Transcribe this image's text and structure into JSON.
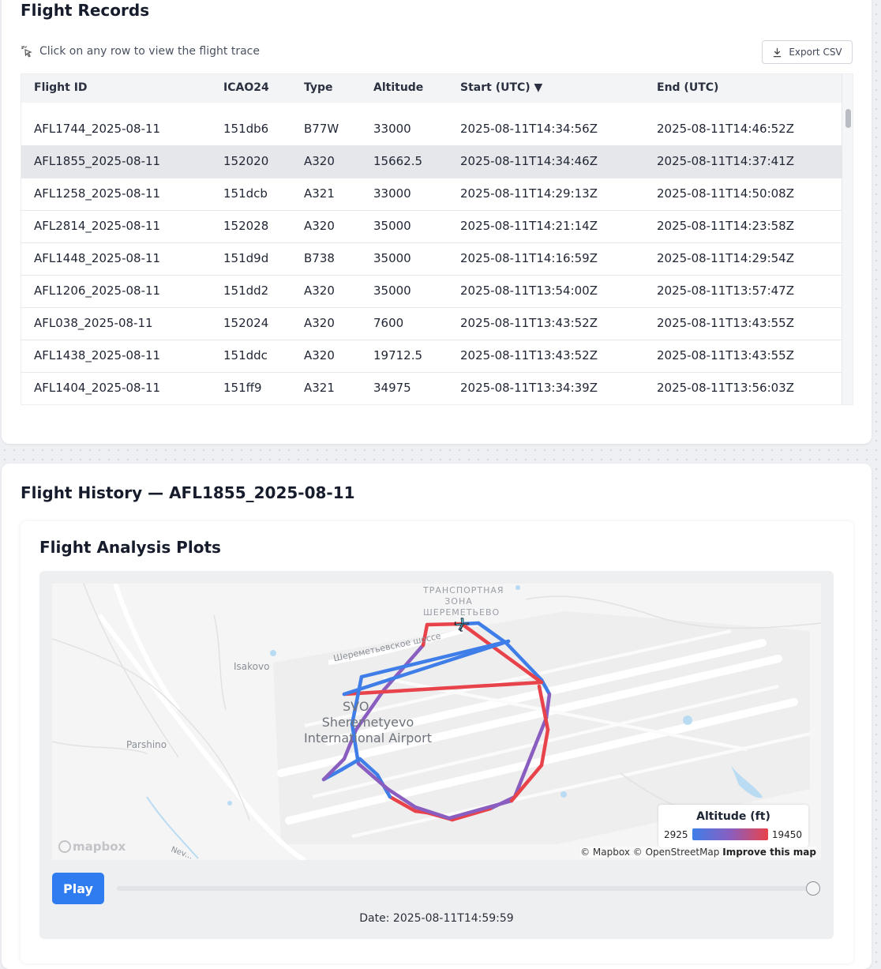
{
  "records": {
    "title": "Flight Records",
    "hint": "Click on any row to view the flight trace",
    "export_label": "Export CSV",
    "columns": [
      "Flight ID",
      "ICAO24",
      "Type",
      "Altitude",
      "Start (UTC) ▼",
      "End (UTC)"
    ],
    "rows": [
      {
        "id": "AFL1744_2025-08-11",
        "icao": "151db6",
        "type": "B77W",
        "alt": "33000",
        "start": "2025-08-11T14:34:56Z",
        "end": "2025-08-11T14:46:52Z"
      },
      {
        "id": "AFL1855_2025-08-11",
        "icao": "152020",
        "type": "A320",
        "alt": "15662.5",
        "start": "2025-08-11T14:34:46Z",
        "end": "2025-08-11T14:37:41Z"
      },
      {
        "id": "AFL1258_2025-08-11",
        "icao": "151dcb",
        "type": "A321",
        "alt": "33000",
        "start": "2025-08-11T14:29:13Z",
        "end": "2025-08-11T14:50:08Z"
      },
      {
        "id": "AFL2814_2025-08-11",
        "icao": "152028",
        "type": "A320",
        "alt": "35000",
        "start": "2025-08-11T14:21:14Z",
        "end": "2025-08-11T14:23:58Z"
      },
      {
        "id": "AFL1448_2025-08-11",
        "icao": "151d9d",
        "type": "B738",
        "alt": "35000",
        "start": "2025-08-11T14:16:59Z",
        "end": "2025-08-11T14:29:54Z"
      },
      {
        "id": "AFL1206_2025-08-11",
        "icao": "151dd2",
        "type": "A320",
        "alt": "35000",
        "start": "2025-08-11T13:54:00Z",
        "end": "2025-08-11T13:57:47Z"
      },
      {
        "id": "AFL038_2025-08-11",
        "icao": "152024",
        "type": "A320",
        "alt": "7600",
        "start": "2025-08-11T13:43:52Z",
        "end": "2025-08-11T13:43:55Z"
      },
      {
        "id": "AFL1438_2025-08-11",
        "icao": "151ddc",
        "type": "A320",
        "alt": "19712.5",
        "start": "2025-08-11T13:43:52Z",
        "end": "2025-08-11T13:43:55Z"
      },
      {
        "id": "AFL1404_2025-08-11",
        "icao": "151ff9",
        "type": "A321",
        "alt": "34975",
        "start": "2025-08-11T13:34:39Z",
        "end": "2025-08-11T13:56:03Z"
      }
    ]
  },
  "history": {
    "title": "Flight History — AFL1855_2025-08-11",
    "panel_title": "Flight Analysis Plots",
    "map": {
      "labels": {
        "transport": "ТРАНСПОРТНАЯ\nЗОНА\nШЕРЕМЕТЬЕВО",
        "highway": "Шереметьевское шоссе",
        "isakovo": "Isakovo",
        "parshino": "Parshino",
        "svo": "SVO",
        "airport": "Sheremetyevo\nInternational Airport",
        "river": "Nev..."
      },
      "legend": {
        "title": "Altitude (ft)",
        "min": "2925",
        "max": "19450"
      },
      "colors": {
        "low": "#3f7ee8",
        "mid": "#8a5ec0",
        "high": "#e8434a"
      },
      "attribution": "© Mapbox © OpenStreetMap",
      "improve": "Improve this map",
      "logo": "mapbox"
    },
    "play_label": "Play",
    "slider_value": 1.0,
    "date_label": "Date: 2025-08-11T14:59:59"
  }
}
